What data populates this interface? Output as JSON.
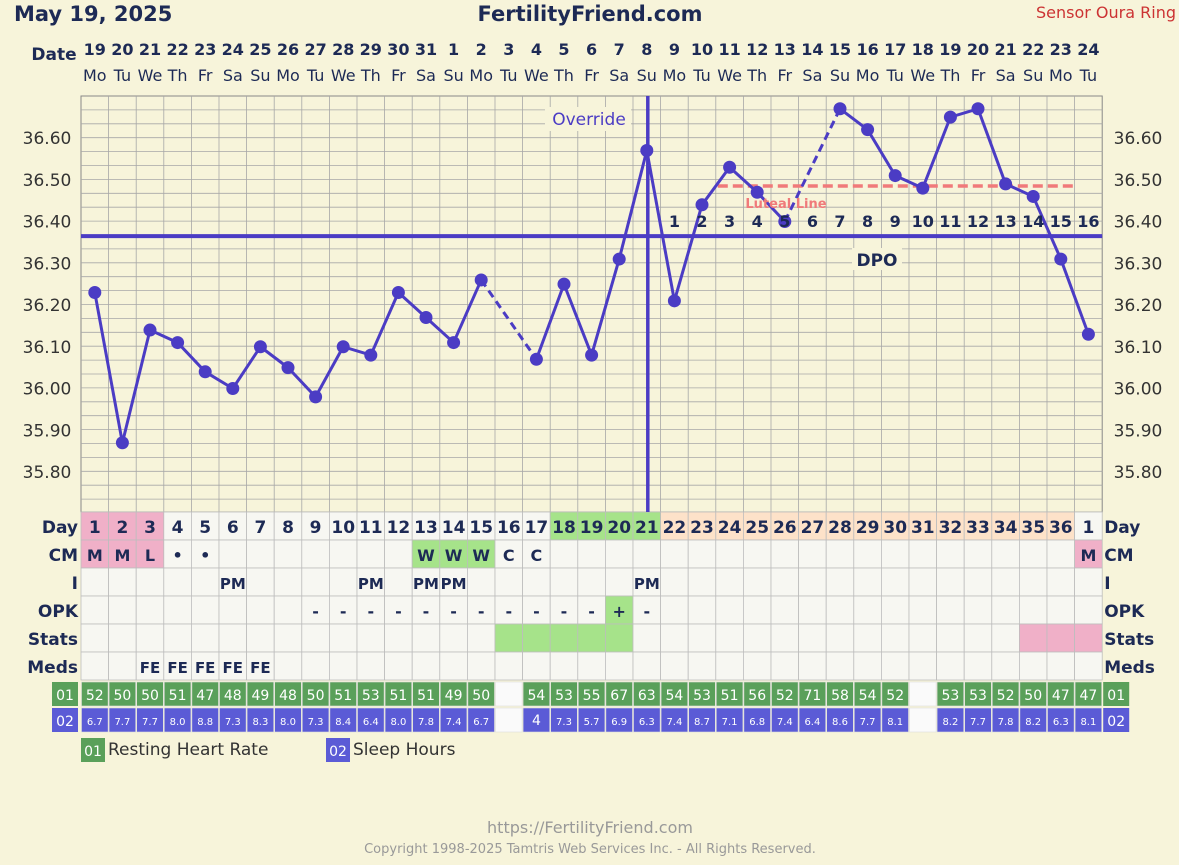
{
  "header": {
    "date": "May 19, 2025",
    "site": "FertilityFriend.com",
    "sensor": "Sensor Oura Ring"
  },
  "footer": {
    "url": "https://FertilityFriend.com",
    "copyright": "Copyright 1998-2025 Tamtris Web Services Inc. - All Rights Reserved."
  },
  "colors": {
    "background": "#f7f4da",
    "line": "#4b3cc4",
    "grid": "#a7a7a7",
    "coverline": "#4b3cc4",
    "luteal": "#f07a7a",
    "menses": "#f0b0c8",
    "fertile": "#a6e38a",
    "luteal_day": "#fde2c9",
    "rhr": "#5aa05a",
    "sleep": "#5b5bd6",
    "header_red": "#cc3333"
  },
  "labels": {
    "date": "Date",
    "day": "Day",
    "cm": "CM",
    "i": "I",
    "opk": "OPK",
    "stats": "Stats",
    "meds": "Meds",
    "override": "Override",
    "luteal_line": "Luteal Line",
    "dpo": "DPO",
    "rhr_code": "01",
    "sleep_code": "02",
    "rhr_legend": "Resting Heart Rate",
    "sleep_legend": "Sleep Hours"
  },
  "chart_data": {
    "type": "line",
    "unit": "°C",
    "ylim": [
      35.7,
      36.7
    ],
    "yticks": [
      "36.60",
      "36.50",
      "36.40",
      "36.30",
      "36.20",
      "36.10",
      "36.00",
      "35.90",
      "35.80"
    ],
    "dates": [
      "19",
      "20",
      "21",
      "22",
      "23",
      "24",
      "25",
      "26",
      "27",
      "28",
      "29",
      "30",
      "31",
      "1",
      "2",
      "3",
      "4",
      "5",
      "6",
      "7",
      "8",
      "9",
      "10",
      "11",
      "12",
      "13",
      "14",
      "15",
      "16",
      "17",
      "18",
      "19",
      "20",
      "21",
      "22",
      "23",
      "24"
    ],
    "weekdays": [
      "Mo",
      "Tu",
      "We",
      "Th",
      "Fr",
      "Sa",
      "Su",
      "Mo",
      "Tu",
      "We",
      "Th",
      "Fr",
      "Sa",
      "Su",
      "Mo",
      "Tu",
      "We",
      "Th",
      "Fr",
      "Sa",
      "Su",
      "Mo",
      "Tu",
      "We",
      "Th",
      "Fr",
      "Sa",
      "Su",
      "Mo",
      "Tu",
      "We",
      "Th",
      "Fr",
      "Sa",
      "Su",
      "Mo",
      "Tu"
    ],
    "cycle_days": [
      "1",
      "2",
      "3",
      "4",
      "5",
      "6",
      "7",
      "8",
      "9",
      "10",
      "11",
      "12",
      "13",
      "14",
      "15",
      "16",
      "17",
      "18",
      "19",
      "20",
      "21",
      "22",
      "23",
      "24",
      "25",
      "26",
      "27",
      "28",
      "29",
      "30",
      "31",
      "32",
      "33",
      "34",
      "35",
      "36",
      "1"
    ],
    "day_phase": [
      "m",
      "m",
      "m",
      "",
      "",
      "",
      "",
      "",
      "",
      "",
      "",
      "",
      "",
      "",
      "",
      "",
      "",
      "f",
      "f",
      "f",
      "f",
      "l",
      "l",
      "l",
      "l",
      "l",
      "l",
      "l",
      "l",
      "l",
      "l",
      "l",
      "l",
      "l",
      "l",
      "l",
      ""
    ],
    "temps": [
      36.23,
      35.87,
      36.14,
      36.11,
      36.04,
      36.0,
      36.1,
      36.05,
      35.98,
      36.1,
      36.08,
      36.23,
      36.17,
      36.11,
      36.26,
      null,
      36.07,
      36.25,
      36.08,
      36.31,
      36.57,
      36.21,
      36.44,
      36.53,
      36.47,
      36.4,
      null,
      36.67,
      36.62,
      36.51,
      36.48,
      36.65,
      36.67,
      36.49,
      36.46,
      36.31,
      36.13
    ],
    "dashed_segments": [
      [
        14,
        16
      ],
      [
        25,
        27
      ]
    ],
    "coverline": 36.365,
    "luteal_line": 36.485,
    "luteal_span": [
      23,
      35
    ],
    "ovulation_index": 20,
    "dpo": [
      "1",
      "2",
      "3",
      "4",
      "5",
      "6",
      "7",
      "8",
      "9",
      "10",
      "11",
      "12",
      "13",
      "14",
      "15",
      "16"
    ],
    "cm": [
      "M",
      "M",
      "L",
      "•",
      "•",
      "",
      "",
      "",
      "",
      "",
      "",
      "",
      "W",
      "W",
      "W",
      "C",
      "C",
      "",
      "",
      "",
      "",
      "",
      "",
      "",
      "",
      "",
      "",
      "",
      "",
      "",
      "",
      "",
      "",
      "",
      "",
      "",
      "M"
    ],
    "cm_fill": [
      "menses",
      "menses",
      "menses",
      "",
      "",
      "",
      "",
      "",
      "",
      "",
      "",
      "",
      "fertile",
      "fertile",
      "fertile",
      "",
      "",
      "",
      "",
      "",
      "",
      "",
      "",
      "",
      "",
      "",
      "",
      "",
      "",
      "",
      "",
      "",
      "",
      "",
      "",
      "",
      "menses"
    ],
    "intercourse": [
      "",
      "",
      "",
      "",
      "",
      "PM",
      "",
      "",
      "",
      "",
      "PM",
      "",
      "PM",
      "PM",
      "",
      "",
      "",
      "",
      "",
      "",
      "PM",
      "",
      "",
      "",
      "",
      "",
      "",
      "",
      "",
      "",
      "",
      "",
      "",
      "",
      "",
      "",
      ""
    ],
    "opk": [
      "",
      "",
      "",
      "",
      "",
      "",
      "",
      "",
      "-",
      "-",
      "-",
      "-",
      "-",
      "-",
      "-",
      "-",
      "-",
      "-",
      "-",
      "+",
      "-",
      "",
      "",
      "",
      "",
      "",
      "",
      "",
      "",
      "",
      "",
      "",
      "",
      "",
      "",
      "",
      ""
    ],
    "opk_fill": [
      "",
      "",
      "",
      "",
      "",
      "",
      "",
      "",
      "",
      "",
      "",
      "",
      "",
      "",
      "",
      "",
      "",
      "",
      "",
      "fertile",
      "",
      "",
      "",
      "",
      "",
      "",
      "",
      "",
      "",
      "",
      "",
      "",
      "",
      "",
      "",
      "",
      ""
    ],
    "stats_fill": [
      "",
      "",
      "",
      "",
      "",
      "",
      "",
      "",
      "",
      "",
      "",
      "",
      "",
      "",
      "",
      "fertile",
      "fertile",
      "fertile",
      "fertile",
      "fertile",
      "",
      "",
      "",
      "",
      "",
      "",
      "",
      "",
      "",
      "",
      "",
      "",
      "",
      "",
      "menses",
      "menses",
      "menses"
    ],
    "meds": [
      "",
      "",
      "FE",
      "FE",
      "FE",
      "FE",
      "FE",
      "",
      "",
      "",
      "",
      "",
      "",
      "",
      "",
      "",
      "",
      "",
      "",
      "",
      "",
      "",
      "",
      "",
      "",
      "",
      "",
      "",
      "",
      "",
      "",
      "",
      "",
      "",
      "",
      "",
      ""
    ],
    "rhr": [
      "52",
      "50",
      "50",
      "51",
      "47",
      "48",
      "49",
      "48",
      "50",
      "51",
      "53",
      "51",
      "51",
      "49",
      "50",
      "",
      "54",
      "53",
      "55",
      "67",
      "63",
      "54",
      "53",
      "51",
      "56",
      "52",
      "71",
      "58",
      "54",
      "52",
      "",
      "53",
      "53",
      "52",
      "50",
      "47",
      "47"
    ],
    "sleep": [
      "6.7",
      "7.7",
      "7.7",
      "8.0",
      "8.8",
      "7.3",
      "8.3",
      "8.0",
      "7.3",
      "8.4",
      "6.4",
      "8.0",
      "7.8",
      "7.4",
      "6.7",
      "",
      "4",
      "7.3",
      "5.7",
      "6.9",
      "6.3",
      "7.4",
      "8.7",
      "7.1",
      "6.8",
      "7.4",
      "6.4",
      "8.6",
      "7.7",
      "8.1",
      "",
      "8.2",
      "7.7",
      "7.8",
      "8.2",
      "6.3",
      "8.1"
    ]
  }
}
